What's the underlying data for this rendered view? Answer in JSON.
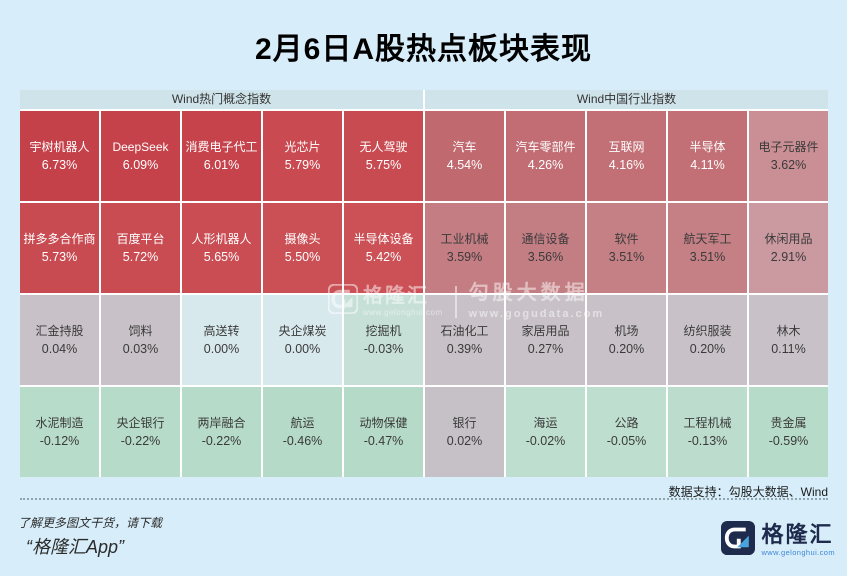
{
  "chart_data": {
    "type": "heatmap",
    "title": "2月6日A股热点板块表现",
    "groups": [
      "Wind热门概念指数",
      "Wind中国行业指数"
    ],
    "legend_note": "columns 1-5 belong to group 1, columns 6-10 to group 2; red = gain, gray = flat, green = decline",
    "rows": [
      [
        {
          "label": "宇树机器人",
          "value": 6.73,
          "display": "6.73%",
          "bg": "#c5414a",
          "fg": "#ffffff"
        },
        {
          "label": "DeepSeek",
          "value": 6.09,
          "display": "6.09%",
          "bg": "#c5424b",
          "fg": "#ffffff"
        },
        {
          "label": "消费电子代工",
          "value": 6.01,
          "display": "6.01%",
          "bg": "#c6434c",
          "fg": "#ffffff"
        },
        {
          "label": "光芯片",
          "value": 5.79,
          "display": "5.79%",
          "bg": "#c94a51",
          "fg": "#ffffff"
        },
        {
          "label": "无人驾驶",
          "value": 5.75,
          "display": "5.75%",
          "bg": "#c94b52",
          "fg": "#ffffff"
        },
        {
          "label": "汽车",
          "value": 4.54,
          "display": "4.54%",
          "bg": "#c06a70",
          "fg": "#ffffff"
        },
        {
          "label": "汽车零部件",
          "value": 4.26,
          "display": "4.26%",
          "bg": "#c16d73",
          "fg": "#ffffff"
        },
        {
          "label": "互联网",
          "value": 4.16,
          "display": "4.16%",
          "bg": "#c26f75",
          "fg": "#ffffff"
        },
        {
          "label": "半导体",
          "value": 4.11,
          "display": "4.11%",
          "bg": "#c27076",
          "fg": "#ffffff"
        },
        {
          "label": "电子元器件",
          "value": 3.62,
          "display": "3.62%",
          "bg": "#c98f94",
          "fg": "#3a3a3a"
        }
      ],
      [
        {
          "label": "拼多多合作商",
          "value": 5.73,
          "display": "5.73%",
          "bg": "#c94b52",
          "fg": "#ffffff"
        },
        {
          "label": "百度平台",
          "value": 5.72,
          "display": "5.72%",
          "bg": "#c94c53",
          "fg": "#ffffff"
        },
        {
          "label": "人形机器人",
          "value": 5.65,
          "display": "5.65%",
          "bg": "#ca4d54",
          "fg": "#ffffff"
        },
        {
          "label": "摄像头",
          "value": 5.5,
          "display": "5.50%",
          "bg": "#ca5056",
          "fg": "#ffffff"
        },
        {
          "label": "半导体设备",
          "value": 5.42,
          "display": "5.42%",
          "bg": "#cb5157",
          "fg": "#ffffff"
        },
        {
          "label": "工业机械",
          "value": 3.59,
          "display": "3.59%",
          "bg": "#c37d83",
          "fg": "#3a3a3a"
        },
        {
          "label": "通信设备",
          "value": 3.56,
          "display": "3.56%",
          "bg": "#c37e84",
          "fg": "#3a3a3a"
        },
        {
          "label": "软件",
          "value": 3.51,
          "display": "3.51%",
          "bg": "#c48085",
          "fg": "#3a3a3a"
        },
        {
          "label": "航天军工",
          "value": 3.51,
          "display": "3.51%",
          "bg": "#c48085",
          "fg": "#3a3a3a"
        },
        {
          "label": "休闲用品",
          "value": 2.91,
          "display": "2.91%",
          "bg": "#cb99a0",
          "fg": "#3a3a3a"
        }
      ],
      [
        {
          "label": "汇金持股",
          "value": 0.04,
          "display": "0.04%",
          "bg": "#c8c2c8",
          "fg": "#3a3a3a"
        },
        {
          "label": "饲料",
          "value": 0.03,
          "display": "0.03%",
          "bg": "#c8c2c8",
          "fg": "#3a3a3a"
        },
        {
          "label": "高送转",
          "value": 0.0,
          "display": "0.00%",
          "bg": "#d8e9ee",
          "fg": "#3a3a3a"
        },
        {
          "label": "央企煤炭",
          "value": 0.0,
          "display": "0.00%",
          "bg": "#d8e9ee",
          "fg": "#3a3a3a"
        },
        {
          "label": "挖掘机",
          "value": -0.03,
          "display": "-0.03%",
          "bg": "#c6e0d7",
          "fg": "#3a3a3a"
        },
        {
          "label": "石油化工",
          "value": 0.39,
          "display": "0.39%",
          "bg": "#c8c2c8",
          "fg": "#3a3a3a"
        },
        {
          "label": "家居用品",
          "value": 0.27,
          "display": "0.27%",
          "bg": "#c8c2c8",
          "fg": "#3a3a3a"
        },
        {
          "label": "机场",
          "value": 0.2,
          "display": "0.20%",
          "bg": "#c8c2c8",
          "fg": "#3a3a3a"
        },
        {
          "label": "纺织服装",
          "value": 0.2,
          "display": "0.20%",
          "bg": "#c8c2c8",
          "fg": "#3a3a3a"
        },
        {
          "label": "林木",
          "value": 0.11,
          "display": "0.11%",
          "bg": "#c8c2c8",
          "fg": "#3a3a3a"
        }
      ],
      [
        {
          "label": "水泥制造",
          "value": -0.12,
          "display": "-0.12%",
          "bg": "#b8dcca",
          "fg": "#3a3a3a"
        },
        {
          "label": "央企银行",
          "value": -0.22,
          "display": "-0.22%",
          "bg": "#b7dbc9",
          "fg": "#3a3a3a"
        },
        {
          "label": "两岸融合",
          "value": -0.22,
          "display": "-0.22%",
          "bg": "#b7dbc9",
          "fg": "#3a3a3a"
        },
        {
          "label": "航运",
          "value": -0.46,
          "display": "-0.46%",
          "bg": "#b5dac7",
          "fg": "#3a3a3a"
        },
        {
          "label": "动物保健",
          "value": -0.47,
          "display": "-0.47%",
          "bg": "#b5dac7",
          "fg": "#3a3a3a"
        },
        {
          "label": "银行",
          "value": 0.02,
          "display": "0.02%",
          "bg": "#c6c1c7",
          "fg": "#3a3a3a"
        },
        {
          "label": "海运",
          "value": -0.02,
          "display": "-0.02%",
          "bg": "#bedfd0",
          "fg": "#3a3a3a"
        },
        {
          "label": "公路",
          "value": -0.05,
          "display": "-0.05%",
          "bg": "#bedfd0",
          "fg": "#3a3a3a"
        },
        {
          "label": "工程机械",
          "value": -0.13,
          "display": "-0.13%",
          "bg": "#bcddce",
          "fg": "#3a3a3a"
        },
        {
          "label": "贵金属",
          "value": -0.59,
          "display": "-0.59%",
          "bg": "#b7dbc9",
          "fg": "#3a3a3a"
        }
      ]
    ]
  },
  "watermark": {
    "gelonghui_text": "格隆汇",
    "gelonghui_url": "www.gelonghui.com",
    "gogu_text": "勾股大数据",
    "gogu_url": "www.gogudata.com"
  },
  "footer": {
    "data_support": "数据支持：勾股大数据、Wind",
    "promo_line1": "了解更多图文干货，请下载",
    "promo_line2": "“格隆汇App”",
    "logo_text": "格隆汇",
    "logo_url": "www.gelonghui.com"
  },
  "colors": {
    "page_background": "#d7eefa",
    "group_header_bg": "#cfe3ea",
    "gain_strong": "#c5414a",
    "flat_gray": "#c8c2c8",
    "decline_green": "#b7dbc9",
    "logo_navy": "#1e2b4d",
    "logo_blue": "#4aa3dc"
  }
}
